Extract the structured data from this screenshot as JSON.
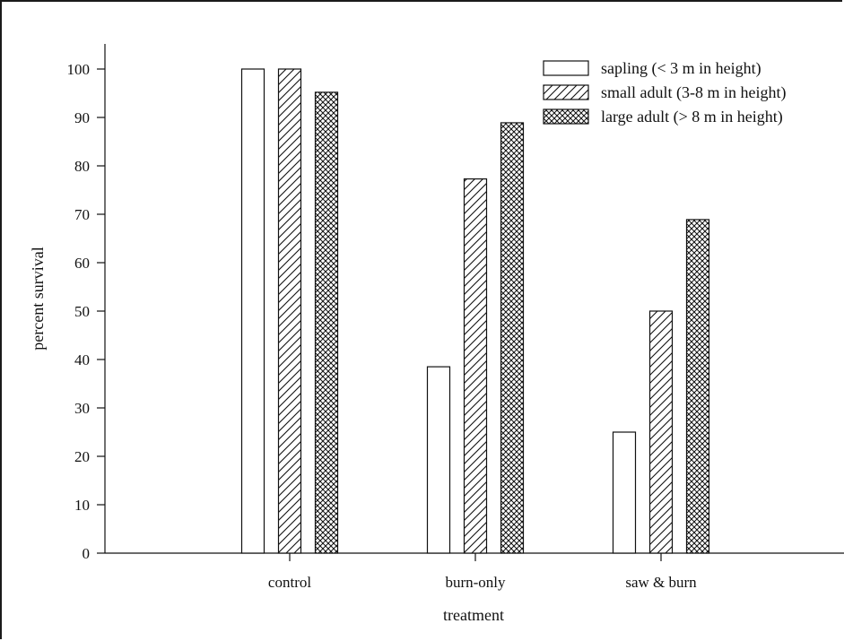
{
  "chart_data": {
    "type": "bar",
    "title": "",
    "xlabel": "treatment",
    "ylabel": "percent survival",
    "categories": [
      "control",
      "burn-only",
      "saw & burn"
    ],
    "series": [
      {
        "name": "sapling (< 3 m in height)",
        "pattern": "open",
        "values": [
          100,
          38.5,
          25
        ]
      },
      {
        "name": "small adult (3-8 m in height)",
        "pattern": "diagonal-hatch",
        "values": [
          100,
          77.3,
          50
        ]
      },
      {
        "name": "large adult (> 8 m in height)",
        "pattern": "crosshatch",
        "values": [
          95.2,
          88.9,
          68.9
        ]
      }
    ],
    "ylim": [
      0,
      100
    ],
    "yticks": [
      0,
      10,
      20,
      30,
      40,
      50,
      60,
      70,
      80,
      90,
      100
    ],
    "grid": false,
    "legend_position": "top-right",
    "colors": {
      "stroke": "#111111",
      "fill": "#ffffff"
    }
  }
}
